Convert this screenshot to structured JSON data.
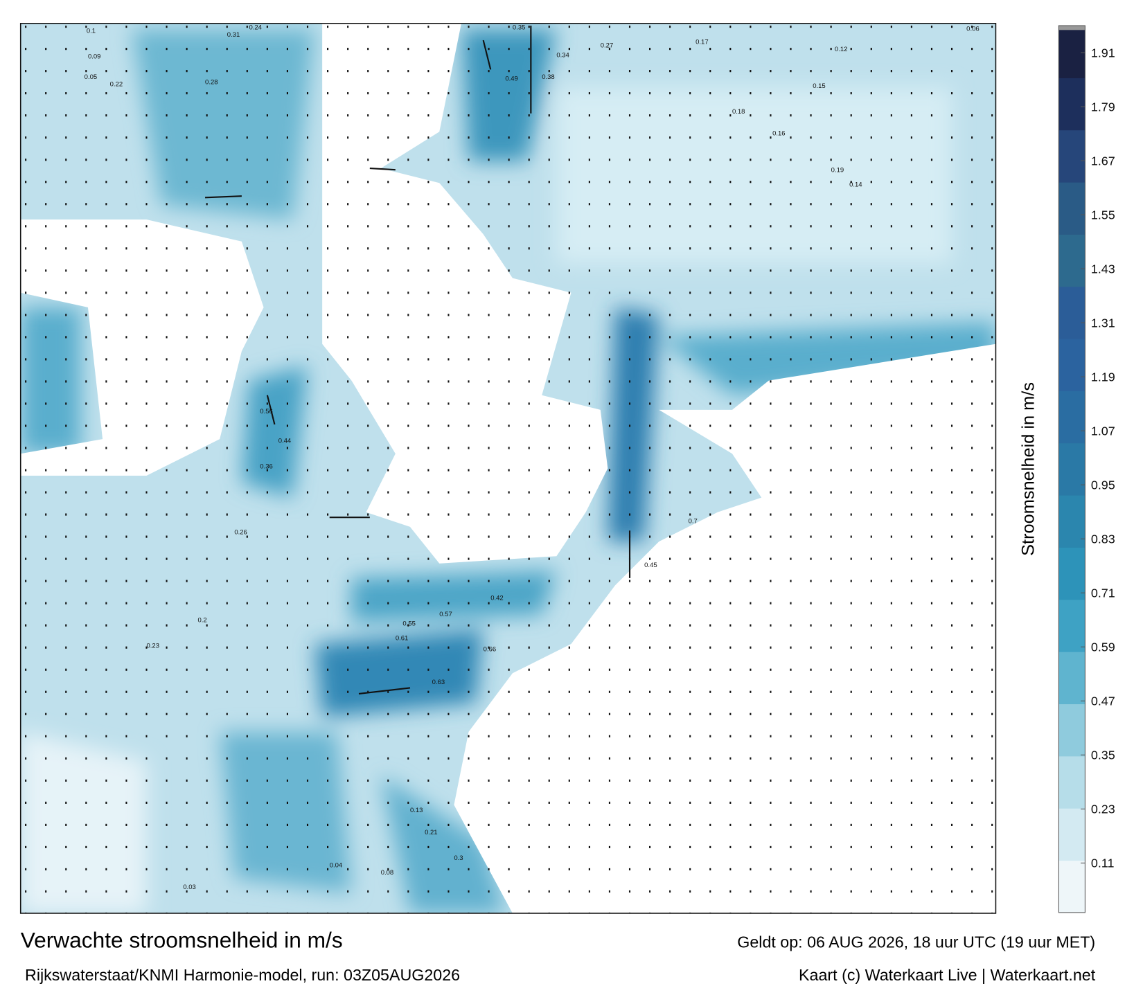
{
  "header": {
    "title": "Verwachte stroomsnelheid in m/s",
    "valid": "Geldt op: 06 AUG 2026, 18 uur UTC (19 uur MET)",
    "model": "Rijkswaterstaat/KNMI Harmonie-model, run: 03Z05AUG2026",
    "credit": "Kaart (c) Waterkaart Live | Waterkaart.net"
  },
  "colorbar": {
    "label": "Stroomsnelheid in m/s",
    "range": [
      0,
      1.97
    ],
    "ticks": [
      0.11,
      0.23,
      0.35,
      0.47,
      0.59,
      0.71,
      0.83,
      0.95,
      1.07,
      1.19,
      1.31,
      1.43,
      1.55,
      1.67,
      1.79,
      1.91
    ],
    "colors": [
      "#eef6f9",
      "#d3eaf2",
      "#b6dde9",
      "#8fcbdd",
      "#5fb4cf",
      "#3ea2c4",
      "#2d93b9",
      "#2b86ae",
      "#2a79a6",
      "#2a6da2",
      "#2b639f",
      "#2b5d98",
      "#2d6a8e",
      "#2a5b86",
      "#26467a",
      "#1d2f5c",
      "#1a2142"
    ]
  },
  "map": {
    "speed_labels": [
      0.1,
      0.09,
      0.05,
      0.22,
      0.28,
      0.31,
      0.24,
      0.35,
      0.49,
      0.38,
      0.34,
      0.27,
      0.17,
      0.12,
      0.06,
      0.18,
      0.16,
      0.19,
      0.15,
      0.14,
      0.44,
      0.56,
      0.36,
      0.26,
      0.2,
      0.61,
      0.45,
      0.63,
      0.55,
      0.57,
      0.66,
      0.7,
      0.42,
      0.23,
      0.03,
      0.04,
      0.08,
      0.13,
      0.21,
      0.3
    ]
  }
}
